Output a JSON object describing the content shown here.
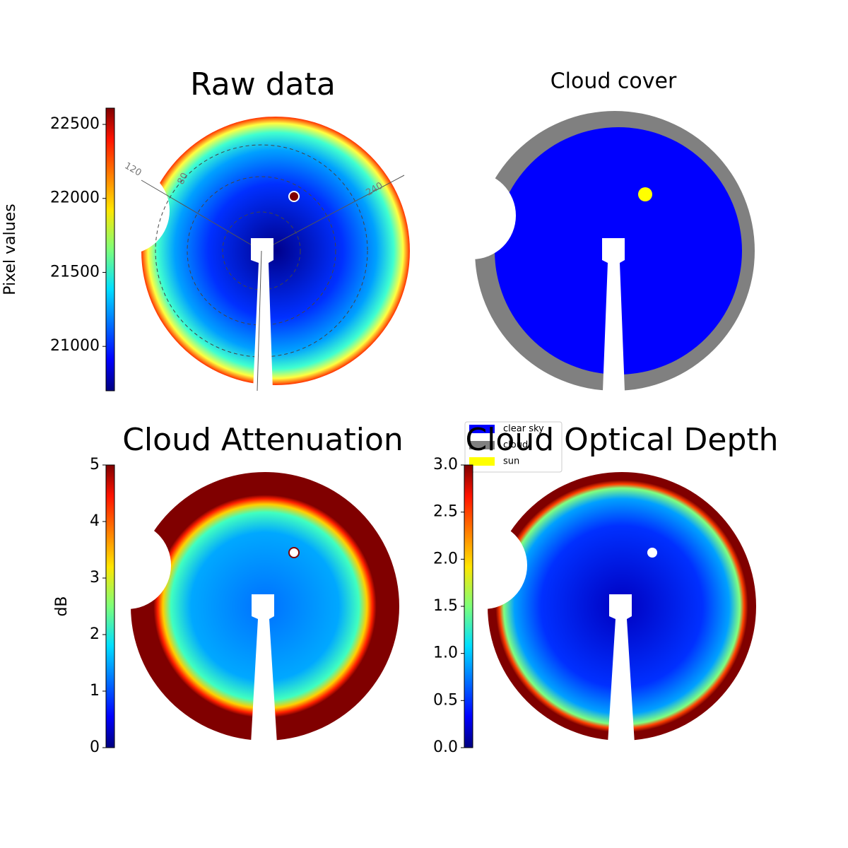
{
  "chart_data": [
    {
      "type": "heatmap",
      "title": "Raw data",
      "colorbar": {
        "label": "Pixel values",
        "lim": [
          20700,
          22610
        ],
        "ticks": [
          21000,
          21500,
          22000,
          22500
        ]
      },
      "annotations": [
        "120",
        "80",
        "240"
      ]
    },
    {
      "type": "categorical",
      "title": "Cloud cover",
      "legend": [
        {
          "name": "clear sky",
          "color": "#0000ff"
        },
        {
          "name": "cloud",
          "color": "#808080"
        },
        {
          "name": "sun",
          "color": "#ffff00"
        }
      ]
    },
    {
      "type": "heatmap",
      "title": "Cloud Attenuation",
      "colorbar": {
        "label": "dB",
        "lim": [
          0,
          5
        ],
        "ticks": [
          0,
          1,
          2,
          3,
          4,
          5
        ]
      }
    },
    {
      "type": "heatmap",
      "title": "Cloud Optical Depth",
      "colorbar": {
        "lim": [
          0,
          3
        ],
        "ticks": [
          {
            "value": 0,
            "label": "0.0"
          },
          {
            "value": 0.5,
            "label": "0.5"
          },
          {
            "value": 1,
            "label": "1.0"
          },
          {
            "value": 1.5,
            "label": "1.5"
          },
          {
            "value": 2,
            "label": "2.0"
          },
          {
            "value": 2.5,
            "label": "2.5"
          },
          {
            "value": 3,
            "label": "3.0"
          }
        ]
      }
    }
  ]
}
